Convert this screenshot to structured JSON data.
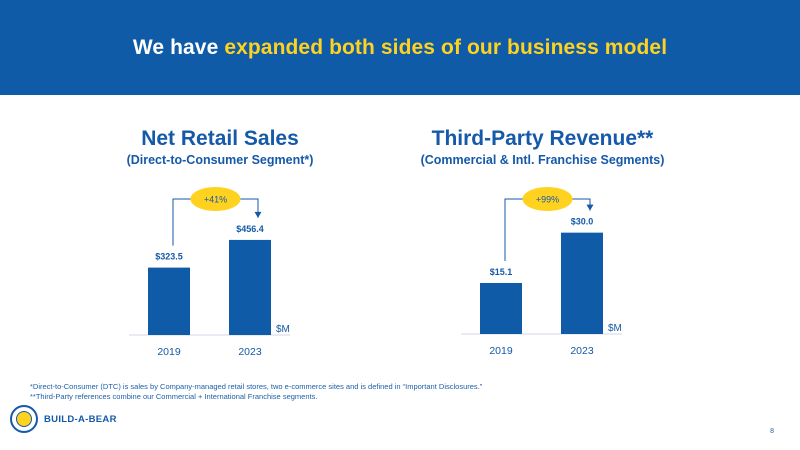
{
  "header": {
    "title_prefix": "We have",
    "title_highlight": "expanded both sides of our business model"
  },
  "colors": {
    "banner": "#0f5ba8",
    "highlight": "#ffd21f",
    "bar": "#0f5ba8",
    "text": "#1559a8"
  },
  "chart_data": [
    {
      "type": "bar",
      "title": "Net Retail Sales",
      "subtitle": "(Direct-to-Consumer Segment*)",
      "categories": [
        "2019",
        "2023"
      ],
      "values": [
        323.5,
        456.4
      ],
      "value_labels": [
        "$323.5",
        "$456.4"
      ],
      "unit_label": "$M",
      "growth_label": "+41%",
      "ylim": [
        0,
        600
      ]
    },
    {
      "type": "bar",
      "title": "Third-Party Revenue**",
      "subtitle": "(Commercial & Intl. Franchise Segments)",
      "categories": [
        "2019",
        "2023"
      ],
      "values": [
        15.1,
        30.0
      ],
      "value_labels": [
        "$15.1",
        "$30.0"
      ],
      "unit_label": "$M",
      "growth_label": "+99%",
      "ylim": [
        0,
        37
      ]
    }
  ],
  "footnotes": {
    "line1": "*Direct-to-Consumer (DTC) is sales by Company-managed retail stores, two e-commerce sites and is defined in “Important Disclosures.”",
    "line2": "**Third-Party references combine our Commercial + International Franchise segments."
  },
  "logo": {
    "text": "BUILD-A-BEAR",
    "icon": "bear-badge-icon"
  },
  "page_number": "8"
}
